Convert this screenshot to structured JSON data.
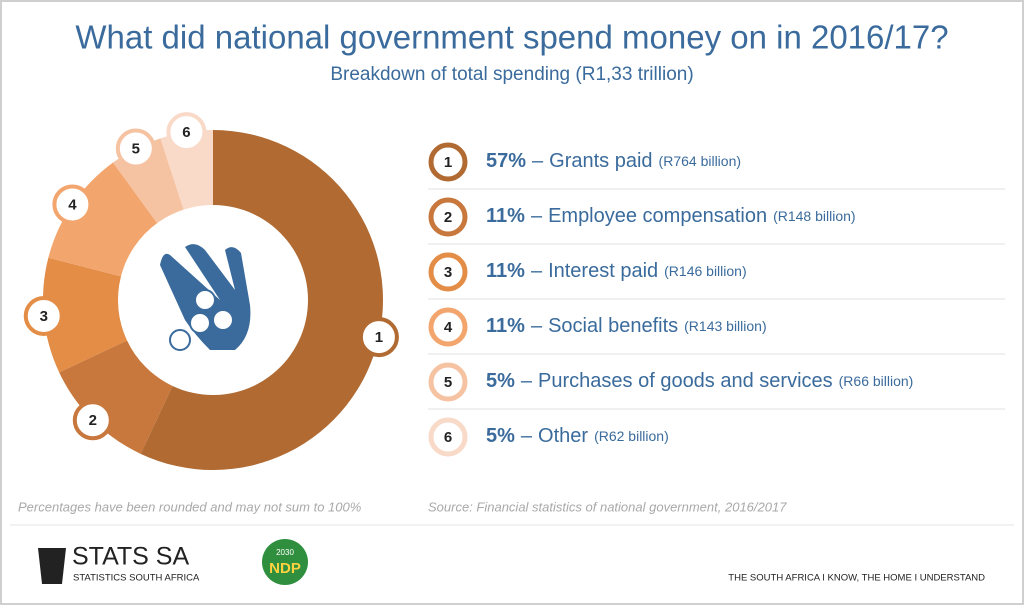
{
  "chart_data": {
    "type": "pie",
    "donut": true,
    "title": "What did national government spend money on in 2016/17?",
    "subtitle": "Breakdown of total spending (R1,33 trillion)",
    "markers": [
      "1",
      "2",
      "3",
      "4",
      "5",
      "6"
    ],
    "categories": [
      "Grants paid",
      "Employee compensation",
      "Interest paid",
      "Social benefits",
      "Purchases of goods and services",
      "Other"
    ],
    "values": [
      57,
      11,
      11,
      11,
      5,
      5
    ],
    "value_labels": [
      "57%",
      "11%",
      "11%",
      "11%",
      "5%",
      "5%"
    ],
    "separator": "–",
    "amounts": [
      "(R764 billion)",
      "(R148 billion)",
      "(R146 billion)",
      "(R143 billion)",
      "(R66 billion)",
      "(R62 billion)"
    ],
    "colors": [
      "#b06a32",
      "#c8783c",
      "#e38d47",
      "#f3a56e",
      "#f6c3a2",
      "#f9d9c7"
    ],
    "note": "Percentages have been rounded and may not sum to 100%",
    "source": "Source: Financial statistics of national government, 2016/2017"
  },
  "footer": {
    "logo": "STATS SA",
    "logo_sub": "STATISTICS SOUTH AFRICA",
    "ndp_year": "2030",
    "ndp": "NDP",
    "slogan": "THE SOUTH AFRICA I KNOW, THE HOME I UNDERSTAND"
  }
}
